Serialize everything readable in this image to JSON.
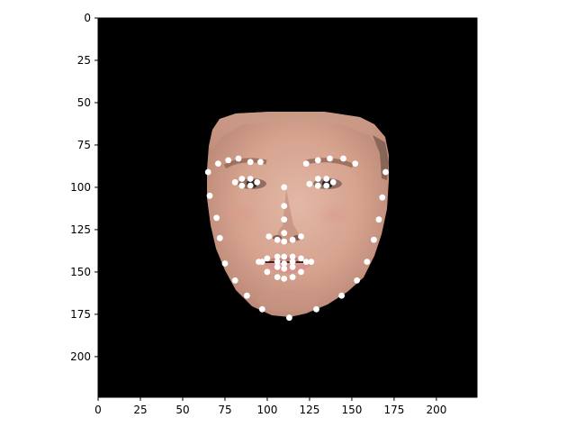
{
  "chart_data": {
    "type": "scatter",
    "title": "",
    "xlabel": "",
    "ylabel": "",
    "xlim": [
      0,
      224
    ],
    "ylim": [
      224,
      0
    ],
    "y_inverted": true,
    "grid": false,
    "legend": "none",
    "background_image": "face-photo",
    "xticks": [
      0,
      25,
      50,
      75,
      100,
      125,
      150,
      175,
      200
    ],
    "yticks": [
      0,
      25,
      50,
      75,
      100,
      125,
      150,
      175,
      200
    ],
    "marker_color": "#ffffff",
    "series": [
      {
        "points": [
          [
            65,
            91
          ],
          [
            66,
            105
          ],
          [
            70,
            118
          ],
          [
            72,
            130
          ],
          [
            75,
            145
          ],
          [
            81,
            155
          ],
          [
            88,
            164
          ],
          [
            97,
            172
          ],
          [
            113,
            177
          ],
          [
            129,
            172
          ],
          [
            144,
            164
          ],
          [
            153,
            155
          ],
          [
            159,
            144
          ],
          [
            163,
            131
          ],
          [
            166,
            119
          ],
          [
            168,
            106
          ],
          [
            170,
            91
          ],
          [
            71,
            86
          ],
          [
            77,
            84
          ],
          [
            83,
            83
          ],
          [
            90,
            85
          ],
          [
            96,
            85
          ],
          [
            123,
            86
          ],
          [
            130,
            84
          ],
          [
            137,
            83
          ],
          [
            145,
            83
          ],
          [
            152,
            86
          ],
          [
            110,
            100
          ],
          [
            110,
            111
          ],
          [
            110,
            119
          ],
          [
            110,
            127
          ],
          [
            101,
            129
          ],
          [
            106,
            131
          ],
          [
            110,
            132
          ],
          [
            115,
            131
          ],
          [
            120,
            129
          ],
          [
            81,
            97
          ],
          [
            85,
            95
          ],
          [
            90,
            95
          ],
          [
            94,
            97
          ],
          [
            90,
            99
          ],
          [
            85,
            99
          ],
          [
            125,
            98
          ],
          [
            130,
            95
          ],
          [
            135,
            95
          ],
          [
            139,
            97
          ],
          [
            135,
            99
          ],
          [
            130,
            99
          ],
          [
            95,
            144
          ],
          [
            100,
            142
          ],
          [
            106,
            141
          ],
          [
            110,
            141
          ],
          [
            115,
            141
          ],
          [
            120,
            142
          ],
          [
            126,
            144
          ],
          [
            120,
            150
          ],
          [
            115,
            153
          ],
          [
            110,
            154
          ],
          [
            106,
            153
          ],
          [
            100,
            150
          ],
          [
            97,
            144
          ],
          [
            106,
            144
          ],
          [
            110,
            145
          ],
          [
            115,
            144
          ],
          [
            123,
            144
          ],
          [
            115,
            147
          ],
          [
            110,
            148
          ],
          [
            106,
            147
          ]
        ]
      }
    ]
  }
}
